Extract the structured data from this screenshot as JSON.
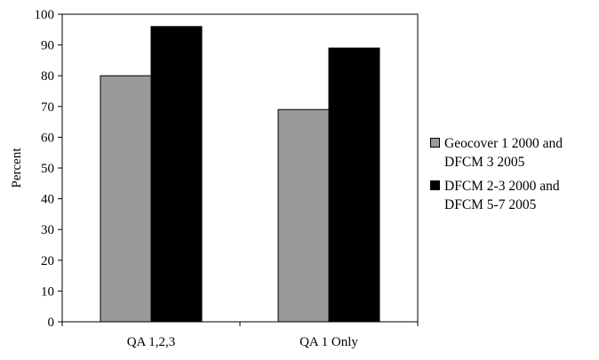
{
  "chart_data": {
    "type": "bar",
    "title": "",
    "xlabel": "",
    "ylabel": "Percent",
    "ylim": [
      0,
      100
    ],
    "yticks": [
      0,
      10,
      20,
      30,
      40,
      50,
      60,
      70,
      80,
      90,
      100
    ],
    "categories": [
      "QA 1,2,3",
      "QA 1 Only"
    ],
    "series": [
      {
        "name": "Geocover 1 2000 and DFCM 3 2005",
        "legend_lines": [
          "Geocover 1 2000 and",
          "DFCM 3 2005"
        ],
        "color": "#999999",
        "values": [
          80,
          69
        ]
      },
      {
        "name": "DFCM 2-3 2000 and DFCM 5-7 2005",
        "legend_lines": [
          "DFCM 2-3 2000 and",
          "DFCM 5-7 2005"
        ],
        "color": "#000000",
        "values": [
          96,
          89
        ]
      }
    ],
    "grid": false,
    "legend_position": "right"
  }
}
